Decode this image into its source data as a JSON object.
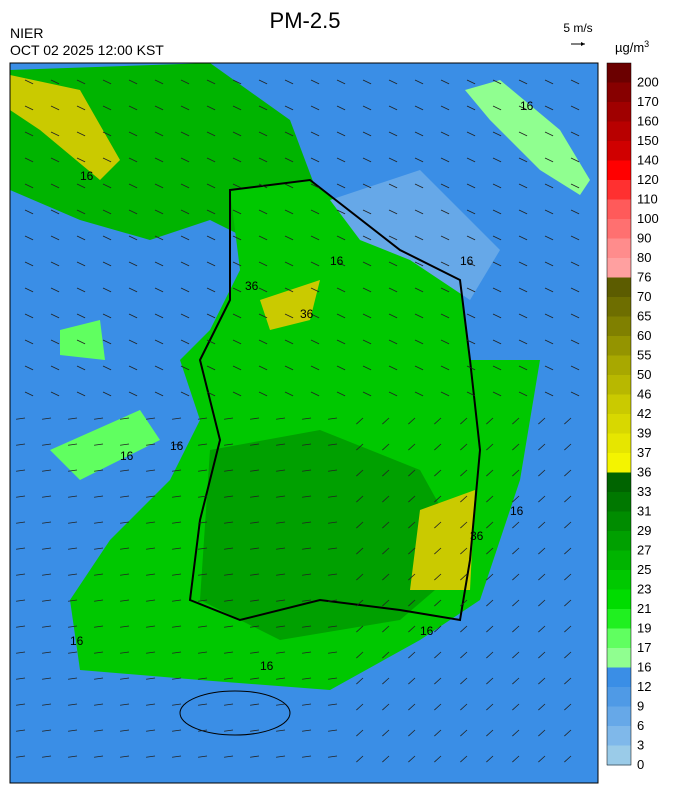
{
  "header": {
    "title": "PM-2.5",
    "source": "NIER",
    "datetime": "OCT 02 2025 12:00 KST"
  },
  "wind_reference": {
    "label": "5 m/s"
  },
  "legend": {
    "unit": "µg/m",
    "unit_superscript": "3",
    "cells": [
      {
        "label": "200",
        "color": "#6b0000"
      },
      {
        "label": "170",
        "color": "#870000"
      },
      {
        "label": "160",
        "color": "#a00000"
      },
      {
        "label": "150",
        "color": "#b80000"
      },
      {
        "label": "140",
        "color": "#d00000"
      },
      {
        "label": "120",
        "color": "#ff0000"
      },
      {
        "label": "110",
        "color": "#ff3030"
      },
      {
        "label": "100",
        "color": "#ff5a5a"
      },
      {
        "label": "90",
        "color": "#ff7070"
      },
      {
        "label": "80",
        "color": "#ff8c8c"
      },
      {
        "label": "76",
        "color": "#ffa0a0"
      },
      {
        "label": "70",
        "color": "#5c5c00"
      },
      {
        "label": "65",
        "color": "#6e6e00"
      },
      {
        "label": "60",
        "color": "#808000"
      },
      {
        "label": "55",
        "color": "#949400"
      },
      {
        "label": "50",
        "color": "#a8a800"
      },
      {
        "label": "46",
        "color": "#b8b800"
      },
      {
        "label": "42",
        "color": "#caca00"
      },
      {
        "label": "39",
        "color": "#d8d800"
      },
      {
        "label": "37",
        "color": "#e6e600"
      },
      {
        "label": "36",
        "color": "#f4f400"
      },
      {
        "label": "33",
        "color": "#006400"
      },
      {
        "label": "31",
        "color": "#007800"
      },
      {
        "label": "29",
        "color": "#008c00"
      },
      {
        "label": "27",
        "color": "#00a000"
      },
      {
        "label": "25",
        "color": "#00b400"
      },
      {
        "label": "23",
        "color": "#00c800"
      },
      {
        "label": "21",
        "color": "#00dc00"
      },
      {
        "label": "19",
        "color": "#20f020"
      },
      {
        "label": "17",
        "color": "#60ff60"
      },
      {
        "label": "16",
        "color": "#90ff90"
      },
      {
        "label": "12",
        "color": "#3a8ee6"
      },
      {
        "label": "9",
        "color": "#4f9ae6"
      },
      {
        "label": "6",
        "color": "#66a8e8"
      },
      {
        "label": "3",
        "color": "#7fb8ea"
      },
      {
        "label": "0",
        "color": "#9acbe8"
      }
    ]
  },
  "contour_labels": [
    "16",
    "16",
    "16",
    "16",
    "16",
    "16",
    "16",
    "16",
    "16",
    "16",
    "36",
    "36",
    "36"
  ]
}
